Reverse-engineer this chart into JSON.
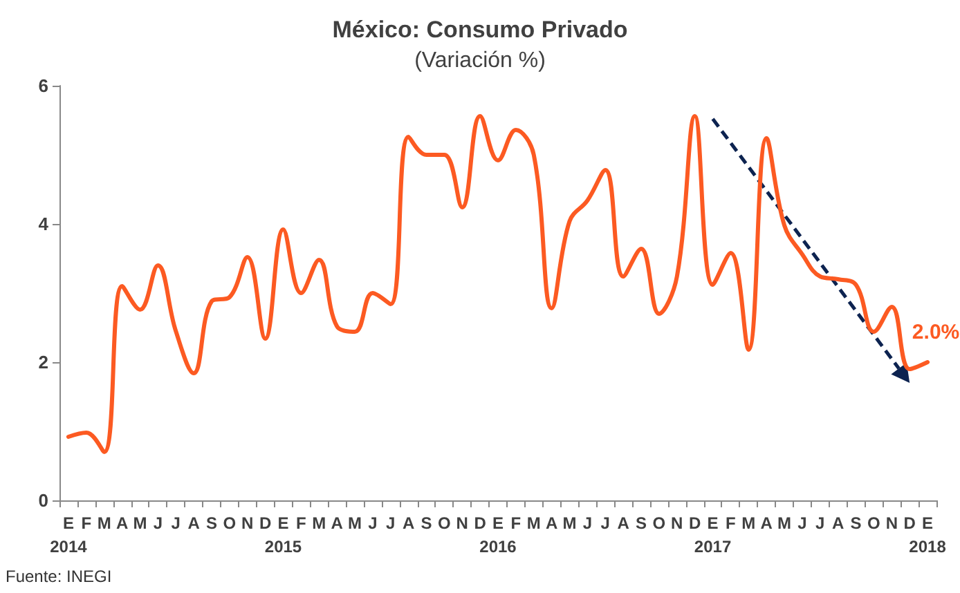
{
  "chart_data": {
    "type": "line",
    "title": "México: Consumo Privado",
    "subtitle": "(Variación %)",
    "categories": [
      "E\n2014",
      "F",
      "M",
      "A",
      "M",
      "J",
      "J",
      "A",
      "S",
      "O",
      "N",
      "D",
      "E\n2015",
      "F",
      "M",
      "A",
      "M",
      "J",
      "J",
      "A",
      "S",
      "O",
      "N",
      "D",
      "E\n2016",
      "F",
      "M",
      "A",
      "M",
      "J",
      "J",
      "A",
      "S",
      "O",
      "N",
      "D",
      "E\n2017",
      "F",
      "M",
      "A",
      "M",
      "J",
      "J",
      "A",
      "S",
      "O",
      "N",
      "D",
      "E\n2018"
    ],
    "series": [
      {
        "color": "#fc5a22",
        "values": [
          0.92,
          0.98,
          0.7,
          3.1,
          2.76,
          3.4,
          2.45,
          1.84,
          2.88,
          2.94,
          3.52,
          2.34,
          3.92,
          3.0,
          3.48,
          2.52,
          2.44,
          3.0,
          2.84,
          5.26,
          5.0,
          5.0,
          4.24,
          5.56,
          4.92,
          5.36,
          5.0,
          2.78,
          4.04,
          4.34,
          4.78,
          3.24,
          3.64,
          2.7,
          3.24,
          5.56,
          3.12,
          3.58,
          2.18,
          5.24,
          3.98,
          3.56,
          3.24,
          3.2,
          3.12,
          2.44,
          2.8,
          1.9,
          2.0
        ],
        "value_labels": [
          null,
          null,
          null,
          null,
          null,
          null,
          null,
          null,
          null,
          null,
          null,
          null,
          null,
          null,
          null,
          null,
          null,
          null,
          null,
          null,
          null,
          null,
          null,
          null,
          null,
          null,
          null,
          null,
          null,
          null,
          null,
          null,
          null,
          null,
          null,
          null,
          null,
          null,
          null,
          null,
          null,
          null,
          null,
          null,
          null,
          null,
          null,
          null,
          "2.0%"
        ]
      }
    ],
    "ylim": [
      0,
      6
    ],
    "yticks": [
      0,
      2,
      4,
      6
    ],
    "grid": false,
    "marker": "none",
    "line_style": "solid",
    "annotations": [
      "Fuente: INEGI"
    ]
  }
}
